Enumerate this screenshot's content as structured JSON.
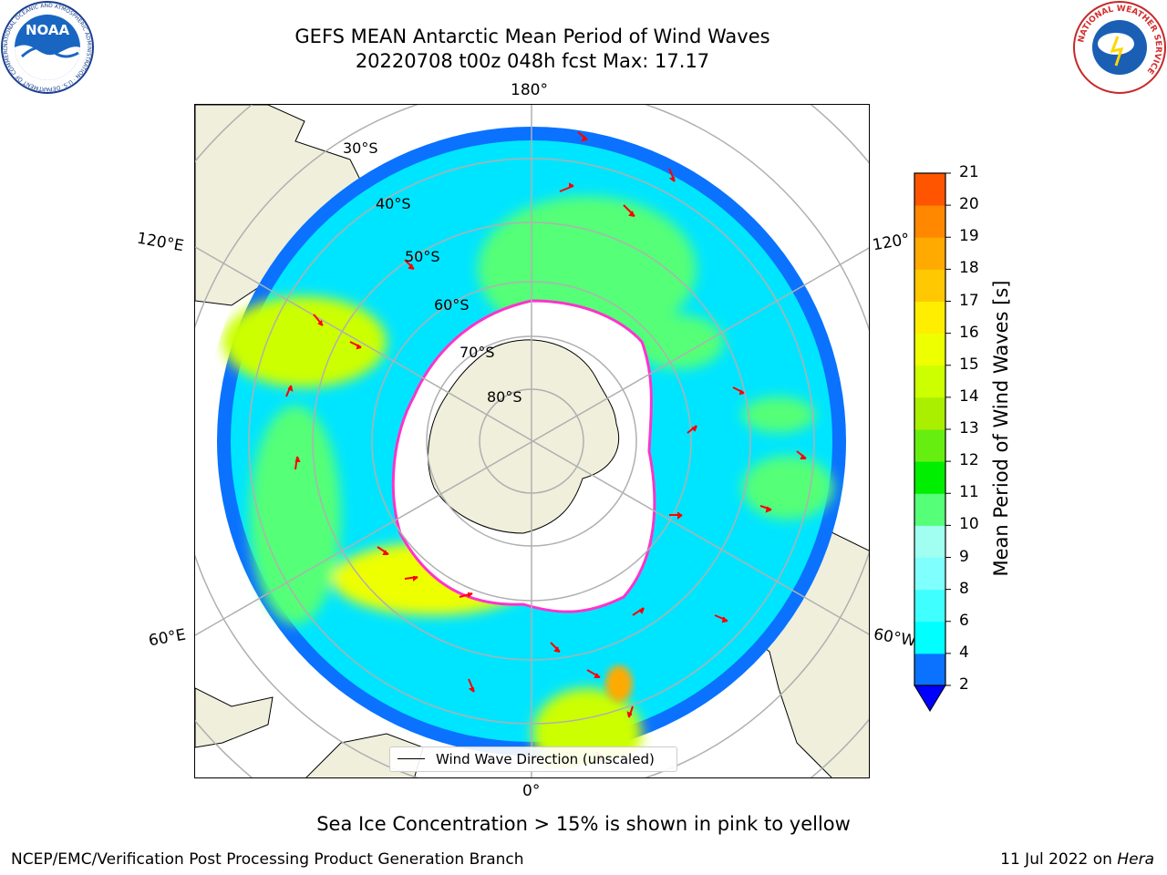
{
  "header": {
    "title": "GEFS MEAN Antarctic Mean Period of Wind Waves",
    "subtitle": "20220708 t00z 048h fcst   Max: 17.17"
  },
  "logos": {
    "left": "NOAA",
    "left_ring": "NATIONAL OCEANIC AND ATMOSPHERIC ADMINISTRATION · U.S. DEPARTMENT OF COMMERCE",
    "right_ring": "NATIONAL WEATHER SERVICE"
  },
  "map": {
    "projection": "south-polar-stereographic",
    "longitude_labels": [
      "180°",
      "120°E",
      "120°",
      "60°E",
      "60°W",
      "0°"
    ],
    "latitude_labels": [
      "30°S",
      "40°S",
      "50°S",
      "60°S",
      "70°S",
      "80°S"
    ],
    "legend_label": "Wind Wave Direction (unscaled)",
    "arrow_color": "#ff0000",
    "ice_edge_colors": [
      "#ff33cc",
      "#ffaa55",
      "#ffff66"
    ],
    "land_color": "#efefdc",
    "grid_color": "#b0b0b0"
  },
  "colorbar": {
    "label": "Mean Period of Wind Waves [s]",
    "ticks": [
      "2",
      "4",
      "6",
      "8",
      "9",
      "10",
      "11",
      "12",
      "13",
      "14",
      "15",
      "16",
      "17",
      "18",
      "19",
      "20",
      "21"
    ],
    "colors": [
      "#0a72ff",
      "#00ffff",
      "#40ffff",
      "#80ffff",
      "#a0fff0",
      "#55ff77",
      "#00ee00",
      "#66ee11",
      "#aaee00",
      "#ccff00",
      "#eeff00",
      "#ffee00",
      "#ffc800",
      "#ffaa00",
      "#ff8800",
      "#ff5500",
      "#ff2200",
      "#ff0000"
    ],
    "extend_color": "#0000ff"
  },
  "footer": {
    "note": "Sea Ice Concentration > 15% is shown in pink to yellow",
    "org": "NCEP/EMC/Verification Post Processing Product Generation Branch",
    "date": "11 Jul 2022 on ",
    "machine": "Hera"
  }
}
